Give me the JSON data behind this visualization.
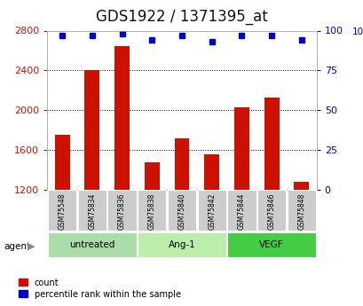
{
  "title": "GDS1922 / 1371395_at",
  "samples": [
    "GSM75548",
    "GSM75834",
    "GSM75836",
    "GSM75838",
    "GSM75840",
    "GSM75842",
    "GSM75844",
    "GSM75846",
    "GSM75848"
  ],
  "counts": [
    1750,
    2400,
    2640,
    1480,
    1720,
    1560,
    2030,
    2130,
    1280
  ],
  "percentiles": [
    97,
    97,
    98,
    94,
    97,
    93,
    97,
    97,
    94
  ],
  "groups": [
    {
      "label": "untreated",
      "indices": [
        0,
        1,
        2
      ],
      "color": "#aaddaa"
    },
    {
      "label": "Ang-1",
      "indices": [
        3,
        4,
        5
      ],
      "color": "#bbeeaa"
    },
    {
      "label": "VEGF",
      "indices": [
        6,
        7,
        8
      ],
      "color": "#44cc44"
    }
  ],
  "ylim_left": [
    1200,
    2800
  ],
  "ylim_right": [
    0,
    100
  ],
  "yticks_left": [
    1200,
    1600,
    2000,
    2400,
    2800
  ],
  "yticks_right": [
    0,
    25,
    50,
    75,
    100
  ],
  "bar_color": "#cc1100",
  "dot_color": "#0000cc",
  "grid_color": "#000000",
  "bg_color": "#ffffff",
  "sample_bg": "#cccccc",
  "title_fontsize": 12,
  "agent_label": "agent"
}
